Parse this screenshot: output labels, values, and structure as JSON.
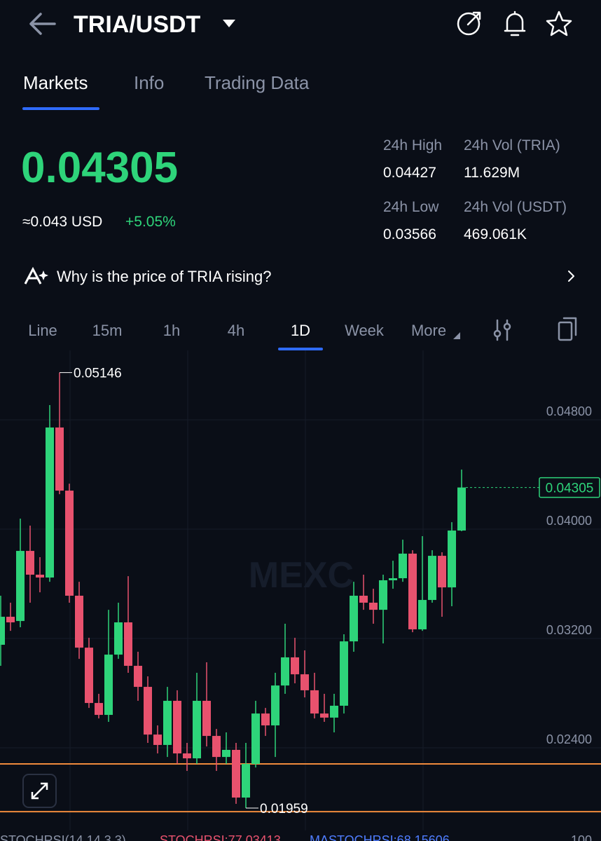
{
  "header": {
    "pair": "TRIA/USDT"
  },
  "tabs": [
    "Markets",
    "Info",
    "Trading Data"
  ],
  "ticker": {
    "price": "0.04305",
    "usd": "≈0.043 USD",
    "change": "+5.05%",
    "stats": [
      {
        "label": "24h High",
        "value": "0.04427"
      },
      {
        "label": "24h Vol (TRIA)",
        "value": "11.629M"
      },
      {
        "label": "24h Low",
        "value": "0.03566"
      },
      {
        "label": "24h Vol (USDT)",
        "value": "469.061K"
      }
    ]
  },
  "insight": "Why is the price of TRIA rising?",
  "intervals": [
    "Line",
    "15m",
    "1h",
    "4h",
    "1D",
    "Week",
    "More"
  ],
  "indicator": {
    "name": "STOCHRSI(14,14,3,3)",
    "stoch": "STOCHRSI:77.03413",
    "ma": "MASTOCHRSI:68.15606",
    "max": "100"
  },
  "chart_data": {
    "type": "candlestick",
    "watermark": "MEXC",
    "up_color": "#2ed47a",
    "down_color": "#e8526e",
    "open": [
      0.03154,
      0.03359,
      0.03328,
      0.03841,
      0.03667,
      0.03646,
      0.04744,
      0.04282,
      0.03513,
      0.03133,
      0.02728,
      0.02641,
      0.03082,
      0.03318,
      0.03,
      0.02846,
      0.02497,
      0.02421,
      0.02744,
      0.02359,
      0.02323,
      0.02744,
      0.02487,
      0.02333,
      0.02385,
      0.02036,
      0.02282,
      0.02651,
      0.02564,
      0.02856,
      0.03062,
      0.02938,
      0.02821,
      0.02651,
      0.02621,
      0.02708,
      0.03179,
      0.03513,
      0.03462,
      0.0341,
      0.03626,
      0.03641,
      0.03821,
      0.03267,
      0.03482,
      0.03805,
      0.03574,
      0.0399
    ],
    "high": [
      0.03513,
      0.03462,
      0.04077,
      0.04026,
      0.03795,
      0.04908,
      0.05146,
      0.04333,
      0.03615,
      0.03205,
      0.02795,
      0.0341,
      0.03462,
      0.03656,
      0.03103,
      0.02923,
      0.02564,
      0.02846,
      0.02821,
      0.02436,
      0.02949,
      0.03026,
      0.02538,
      0.02513,
      0.02436,
      0.02436,
      0.02744,
      0.02692,
      0.02949,
      0.03308,
      0.03205,
      0.03113,
      0.02949,
      0.02795,
      0.02795,
      0.03231,
      0.03615,
      0.03667,
      0.03564,
      0.03667,
      0.03769,
      0.03923,
      0.03846,
      0.03949,
      0.03846,
      0.03831,
      0.04051,
      0.04436
    ],
    "low": [
      0.03,
      0.03256,
      0.03282,
      0.03462,
      0.03538,
      0.03615,
      0.04256,
      0.03462,
      0.03051,
      0.02692,
      0.02615,
      0.0259,
      0.03051,
      0.02949,
      0.02744,
      0.02436,
      0.02359,
      0.02333,
      0.02282,
      0.02231,
      0.02282,
      0.0241,
      0.02231,
      0.02282,
      0.0199,
      0.01959,
      0.02256,
      0.02487,
      0.02333,
      0.02795,
      0.02872,
      0.02769,
      0.02615,
      0.0259,
      0.02513,
      0.02651,
      0.03103,
      0.0341,
      0.03308,
      0.03164,
      0.03564,
      0.03615,
      0.03246,
      0.03256,
      0.03462,
      0.03359,
      0.03436,
      0.03985
    ],
    "close": [
      0.03359,
      0.03318,
      0.03841,
      0.03667,
      0.03646,
      0.04744,
      0.04282,
      0.03513,
      0.03133,
      0.02728,
      0.02641,
      0.03082,
      0.03318,
      0.03,
      0.02846,
      0.02497,
      0.02421,
      0.02744,
      0.02359,
      0.02323,
      0.02744,
      0.02487,
      0.02333,
      0.02385,
      0.02036,
      0.02282,
      0.02651,
      0.02564,
      0.02856,
      0.03062,
      0.02938,
      0.02821,
      0.02651,
      0.02621,
      0.02708,
      0.03179,
      0.03513,
      0.03462,
      0.0341,
      0.03626,
      0.03641,
      0.03821,
      0.03267,
      0.03482,
      0.03805,
      0.03574,
      0.0399,
      0.04305
    ],
    "levels": [
      0.02282,
      0.01933
    ],
    "level_color": "#f08a3c",
    "ylim": [
      0.01795,
      0.05308
    ],
    "yticks": [
      {
        "value": 0.048,
        "label": "0.04800"
      },
      {
        "value": 0.04,
        "label": "0.04000"
      },
      {
        "value": 0.032,
        "label": "0.03200"
      },
      {
        "value": 0.024,
        "label": "0.02400"
      }
    ],
    "grid": true
  }
}
